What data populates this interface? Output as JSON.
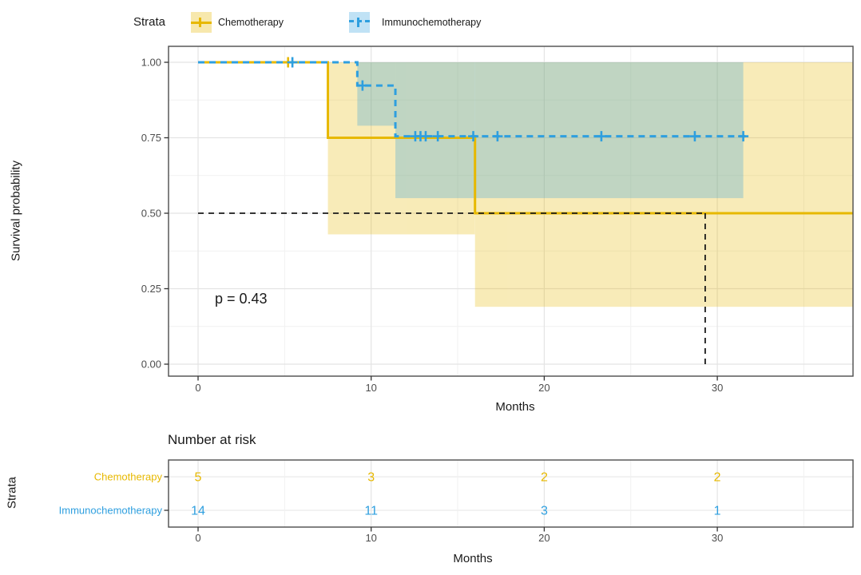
{
  "legend": {
    "title": "Strata",
    "items": [
      {
        "label": "Chemotherapy",
        "color": "#E7B800",
        "linetype": "solid"
      },
      {
        "label": "Immunochemotherapy",
        "color": "#2E9FDF",
        "linetype": "dashed"
      }
    ]
  },
  "chart_data": {
    "type": "line",
    "subtype": "kaplan-meier-step",
    "title": "",
    "xlabel": "Months",
    "ylabel": "Survival probability",
    "xlim": [
      -1.75,
      37.9
    ],
    "ylim": [
      0,
      1
    ],
    "grid": true,
    "legend_position": "top",
    "x_ticks": [
      0,
      10,
      20,
      30
    ],
    "x_minor_ticks": [
      5,
      15,
      25,
      35
    ],
    "y_ticks": [
      {
        "value": 1.0,
        "label": "1.00"
      },
      {
        "value": 0.75,
        "label": "0.75"
      },
      {
        "value": 0.5,
        "label": "0.50"
      },
      {
        "value": 0.25,
        "label": "0.25"
      },
      {
        "value": 0.0,
        "label": "0.00"
      }
    ],
    "y_minor_ticks": [
      0.875,
      0.625,
      0.375,
      0.125
    ],
    "pvalue_label": "p = 0.43",
    "median_reference": {
      "time": 29.3,
      "probability": 0.5
    },
    "series": [
      {
        "name": "Chemotherapy",
        "color": "#E7B800",
        "linetype": "solid",
        "steps": [
          [
            0,
            1.0
          ],
          [
            7.5,
            1.0
          ],
          [
            7.5,
            0.75
          ],
          [
            16,
            0.75
          ],
          [
            16,
            0.5
          ],
          [
            37.9,
            0.5
          ]
        ],
        "censor_marks": [
          [
            5.2,
            1.0
          ]
        ],
        "confidence_band": [
          {
            "t0": 7.5,
            "t1": 16,
            "lower": 0.43,
            "upper": 1.0
          },
          {
            "t0": 16,
            "t1": 37.9,
            "lower": 0.19,
            "upper": 1.0
          }
        ]
      },
      {
        "name": "Immunochemotherapy",
        "color": "#2E9FDF",
        "linetype": "dashed",
        "steps": [
          [
            0,
            1.0
          ],
          [
            9.2,
            1.0
          ],
          [
            9.2,
            0.923
          ],
          [
            11.4,
            0.923
          ],
          [
            11.4,
            0.755
          ],
          [
            31.7,
            0.755
          ]
        ],
        "censor_marks": [
          [
            5.45,
            1.0
          ],
          [
            9.5,
            0.923
          ],
          [
            12.55,
            0.755
          ],
          [
            12.85,
            0.755
          ],
          [
            13.15,
            0.755
          ],
          [
            13.85,
            0.755
          ],
          [
            15.9,
            0.755
          ],
          [
            17.3,
            0.755
          ],
          [
            23.3,
            0.755
          ],
          [
            28.7,
            0.755
          ],
          [
            31.5,
            0.755
          ]
        ],
        "confidence_band": [
          {
            "t0": 9.2,
            "t1": 11.4,
            "lower": 0.79,
            "upper": 1.0
          },
          {
            "t0": 11.4,
            "t1": 31.5,
            "lower": 0.55,
            "upper": 1.0
          }
        ]
      }
    ]
  },
  "risk_table": {
    "title": "Number at risk",
    "ylabel": "Strata",
    "xlabel": "Months",
    "times": [
      0,
      10,
      20,
      30
    ],
    "rows": [
      {
        "label": "Chemotherapy",
        "color": "#E7B800",
        "counts": [
          "5",
          "3",
          "2",
          "2"
        ]
      },
      {
        "label": "Immunochemotherapy",
        "color": "#2E9FDF",
        "counts": [
          "14",
          "11",
          "3",
          "1"
        ]
      }
    ]
  }
}
